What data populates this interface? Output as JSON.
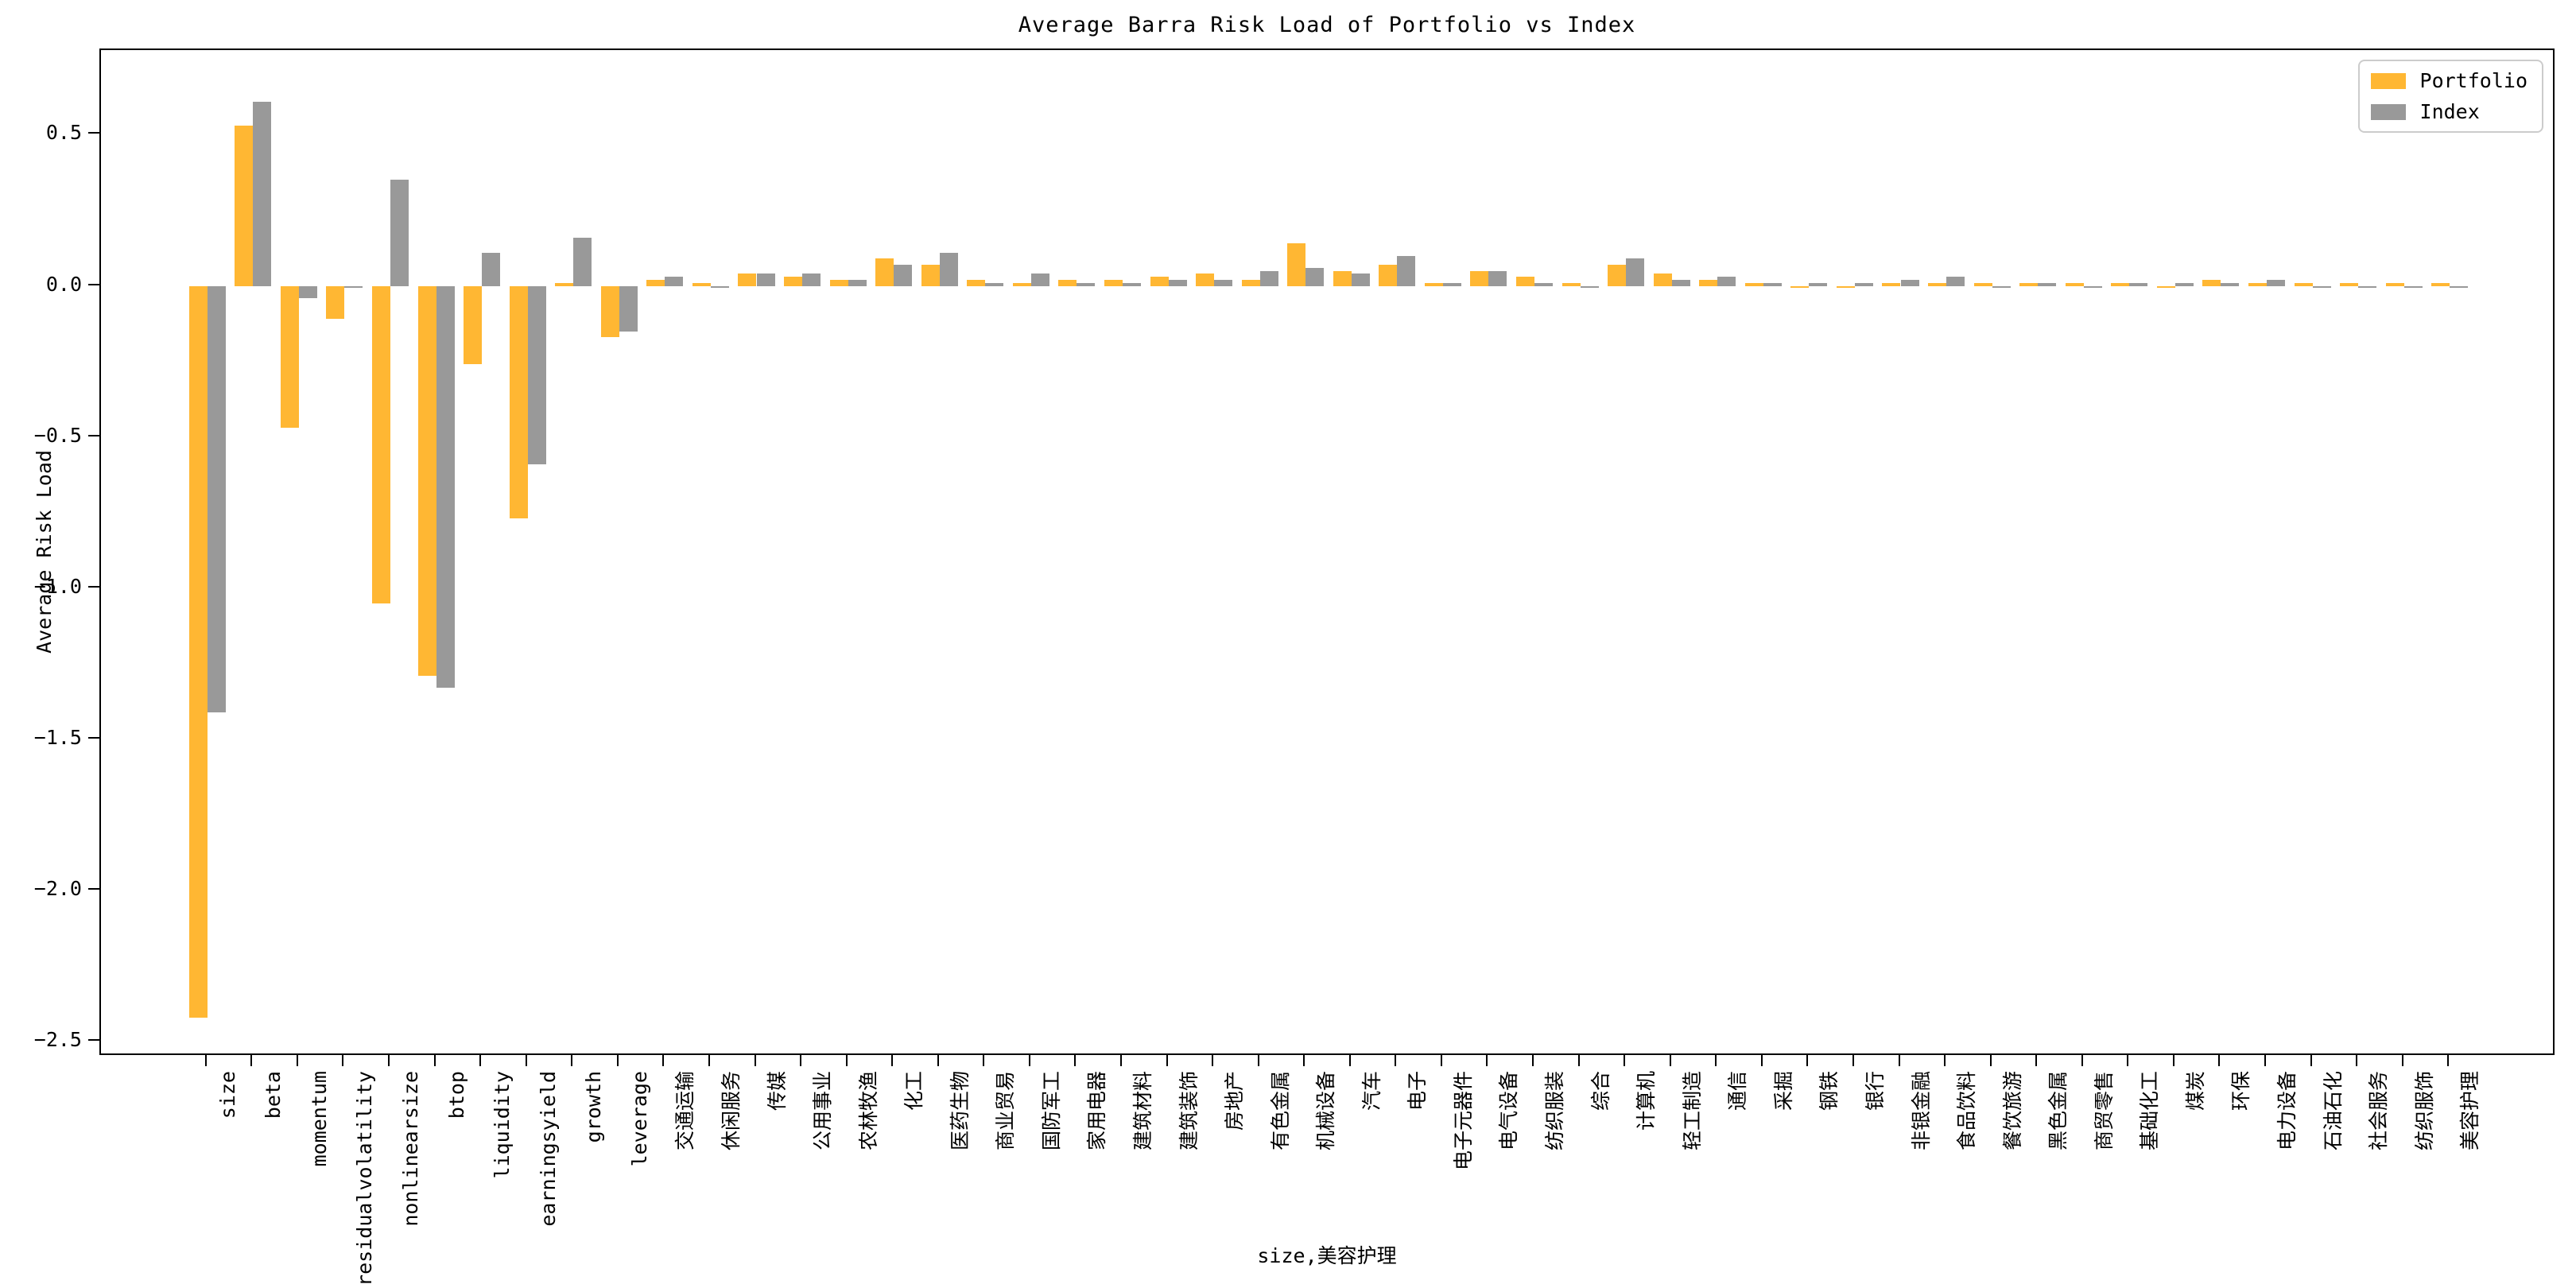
{
  "figure": {
    "title": "Average Barra Risk Load of Portfolio vs Index",
    "ylabel": "Average Risk Load",
    "xlabel": "size,美容护理"
  },
  "legend": {
    "entries": [
      {
        "label": "Portfolio",
        "color": "#FFB733"
      },
      {
        "label": "Index",
        "color": "#999999"
      }
    ]
  },
  "chart_data": {
    "type": "bar",
    "title": "Average Barra Risk Load of Portfolio vs Index",
    "xlabel": "size,美容护理",
    "ylabel": "Average Risk Load",
    "grid": false,
    "legend_position": "upper right",
    "bar_width_fraction": 0.4,
    "ylim": [
      -2.55,
      0.78
    ],
    "yticks": [
      0.5,
      0.0,
      -0.5,
      -1.0,
      -1.5,
      -2.0,
      -2.5
    ],
    "ytick_labels": [
      "0.5",
      "0.0",
      "−0.5",
      "−1.0",
      "−1.5",
      "−2.0",
      "−2.5"
    ],
    "categories": [
      "size",
      "beta",
      "momentum",
      "residualvolatility",
      "nonlinearsize",
      "btop",
      "liquidity",
      "earningsyield",
      "growth",
      "leverage",
      "交通运输",
      "休闲服务",
      "传媒",
      "公用事业",
      "农林牧渔",
      "化工",
      "医药生物",
      "商业贸易",
      "国防军工",
      "家用电器",
      "建筑材料",
      "建筑装饰",
      "房地产",
      "有色金属",
      "机械设备",
      "汽车",
      "电子",
      "电子元器件",
      "电气设备",
      "纺织服装",
      "综合",
      "计算机",
      "轻工制造",
      "通信",
      "采掘",
      "钢铁",
      "银行",
      "非银金融",
      "食品饮料",
      "餐饮旅游",
      "黑色金属",
      "商贸零售",
      "基础化工",
      "煤炭",
      "环保",
      "电力设备",
      "石油石化",
      "社会服务",
      "纺织服饰",
      "美容护理"
    ],
    "series": [
      {
        "name": "Portfolio",
        "color": "#FFB733",
        "values": [
          -2.42,
          0.53,
          -0.47,
          -0.11,
          -1.05,
          -1.29,
          -0.26,
          -0.77,
          0.01,
          -0.17,
          0.02,
          0.01,
          0.04,
          0.03,
          0.02,
          0.09,
          0.07,
          0.02,
          0.01,
          0.02,
          0.02,
          0.03,
          0.04,
          0.02,
          0.14,
          0.05,
          0.07,
          0.01,
          0.05,
          0.03,
          0.01,
          0.07,
          0.04,
          0.02,
          0.01,
          0.0,
          0.0,
          0.01,
          0.01,
          0.01,
          0.01,
          0.01,
          0.01,
          0.0,
          0.02,
          0.01,
          0.01,
          0.01,
          0.01,
          0.01
        ]
      },
      {
        "name": "Index",
        "color": "#999999",
        "values": [
          -1.41,
          0.61,
          -0.04,
          0.0,
          0.35,
          -1.33,
          0.11,
          -0.59,
          0.16,
          -0.15,
          0.03,
          0.0,
          0.04,
          0.04,
          0.02,
          0.07,
          0.11,
          0.01,
          0.04,
          0.01,
          0.01,
          0.02,
          0.02,
          0.05,
          0.06,
          0.04,
          0.1,
          0.01,
          0.05,
          0.01,
          0.0,
          0.09,
          0.02,
          0.03,
          0.01,
          0.01,
          0.01,
          0.02,
          0.03,
          0.0,
          0.01,
          0.0,
          0.01,
          0.01,
          0.01,
          0.02,
          0.0,
          0.0,
          0.0,
          0.0
        ]
      }
    ]
  }
}
